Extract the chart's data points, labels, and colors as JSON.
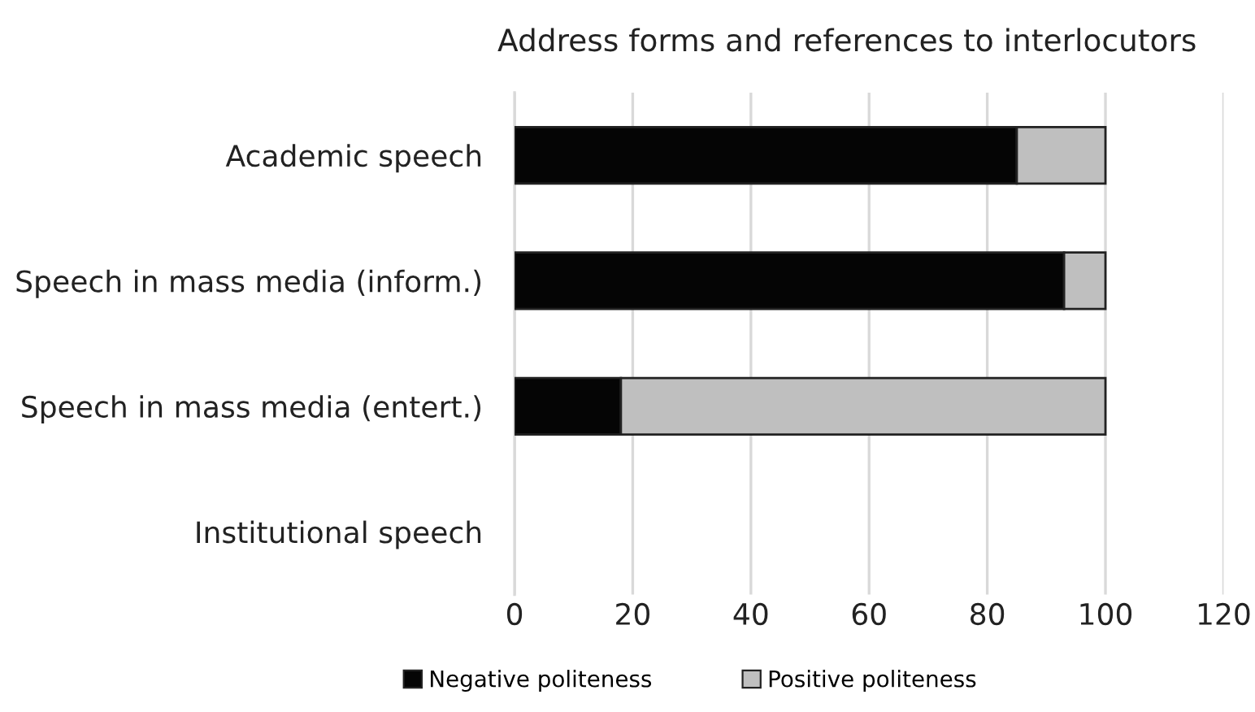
{
  "chart_data": {
    "type": "bar",
    "orientation": "horizontal",
    "stacked": true,
    "title": "Address forms and references to interlocutors",
    "categories": [
      "Academic speech",
      "Speech in mass media (inform.)",
      "Speech in mass media (entert.)",
      "Institutional speech"
    ],
    "series": [
      {
        "name": "Negative politeness",
        "color": "#050505",
        "values": [
          85,
          93,
          18,
          null
        ]
      },
      {
        "name": "Positive politeness",
        "color": "#bfbfbf",
        "values": [
          15,
          7,
          82,
          null
        ]
      }
    ],
    "xlim": [
      0,
      120
    ],
    "xticks": [
      0,
      20,
      40,
      60,
      80,
      100,
      120
    ],
    "grid": "x",
    "legend": "bottom"
  }
}
